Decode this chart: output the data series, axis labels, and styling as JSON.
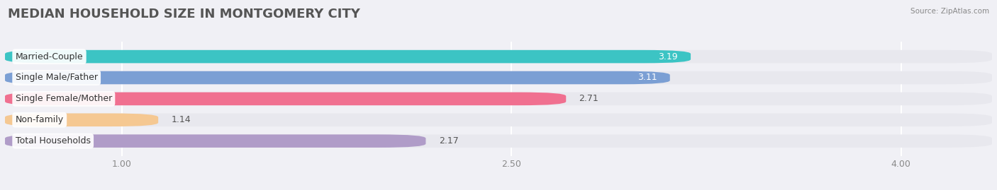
{
  "title": "MEDIAN HOUSEHOLD SIZE IN MONTGOMERY CITY",
  "source": "Source: ZipAtlas.com",
  "categories": [
    "Married-Couple",
    "Single Male/Father",
    "Single Female/Mother",
    "Non-family",
    "Total Households"
  ],
  "values": [
    3.19,
    3.11,
    2.71,
    1.14,
    2.17
  ],
  "bar_colors": [
    "#3cc4c4",
    "#7b9fd4",
    "#f07090",
    "#f5c892",
    "#b09cc8"
  ],
  "value_text_colors": [
    "white",
    "white",
    "#666666",
    "#666666",
    "#666666"
  ],
  "value_inside": [
    true,
    true,
    false,
    false,
    false
  ],
  "background_color": "#f0f0f5",
  "bar_bg_color": "#e8e8ee",
  "xlim_min": 0.55,
  "xlim_max": 4.35,
  "xstart": 0.55,
  "xticks": [
    1.0,
    2.5,
    4.0
  ],
  "xtick_labels": [
    "1.00",
    "2.50",
    "4.00"
  ],
  "title_fontsize": 13,
  "label_fontsize": 9,
  "value_fontsize": 9,
  "bar_height": 0.62,
  "bar_gap": 0.38
}
